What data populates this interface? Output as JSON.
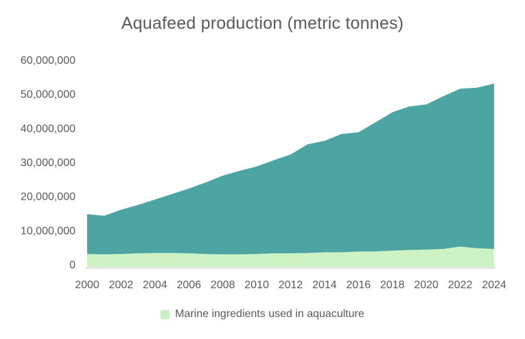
{
  "chart_data": {
    "type": "area",
    "title": "Aquafeed production (metric tonnes)",
    "xlabel": "",
    "ylabel": "",
    "x": [
      2000,
      2001,
      2002,
      2003,
      2004,
      2005,
      2006,
      2007,
      2008,
      2009,
      2010,
      2011,
      2012,
      2013,
      2014,
      2015,
      2016,
      2017,
      2018,
      2019,
      2020,
      2021,
      2022,
      2023,
      2024
    ],
    "series": [
      {
        "name": "Aquafeed production",
        "color": "#4da5a3",
        "values": [
          15500000,
          15000000,
          16800000,
          18200000,
          19800000,
          21400000,
          23000000,
          24800000,
          26800000,
          28200000,
          29500000,
          31300000,
          33000000,
          36000000,
          37000000,
          39000000,
          39500000,
          42400000,
          45400000,
          47100000,
          47700000,
          50100000,
          52300000,
          52600000,
          53800000
        ]
      },
      {
        "name": "Marine ingredients used in aquaculture",
        "color": "#cdf3c5",
        "values": [
          3800000,
          3700000,
          3800000,
          4000000,
          4100000,
          4100000,
          4000000,
          3800000,
          3700000,
          3700000,
          3800000,
          4000000,
          4000000,
          4100000,
          4300000,
          4300000,
          4500000,
          4600000,
          4800000,
          5000000,
          5100000,
          5300000,
          6000000,
          5500000,
          5300000
        ]
      }
    ],
    "ylim": [
      0,
      60000000
    ],
    "y_tick_values": [
      0,
      10000000,
      20000000,
      30000000,
      40000000,
      50000000,
      60000000
    ],
    "y_tick_labels": [
      "0",
      "10,000,000",
      "20,000,000",
      "30,000,000",
      "40,000,000",
      "50,000,000",
      "60,000,000"
    ],
    "x_tick_labels": [
      "2000",
      "2002",
      "2004",
      "2006",
      "2008",
      "2010",
      "2012",
      "2014",
      "2016",
      "2018",
      "2020",
      "2022",
      "2024"
    ],
    "grid": false,
    "axis_line_color": "#d9d9d9",
    "text_color": "#595959",
    "legend": {
      "position": "bottom",
      "entries": [
        {
          "label": "Marine ingredients used in aquaculture",
          "swatch_color": "#c9f0c2"
        }
      ]
    }
  }
}
